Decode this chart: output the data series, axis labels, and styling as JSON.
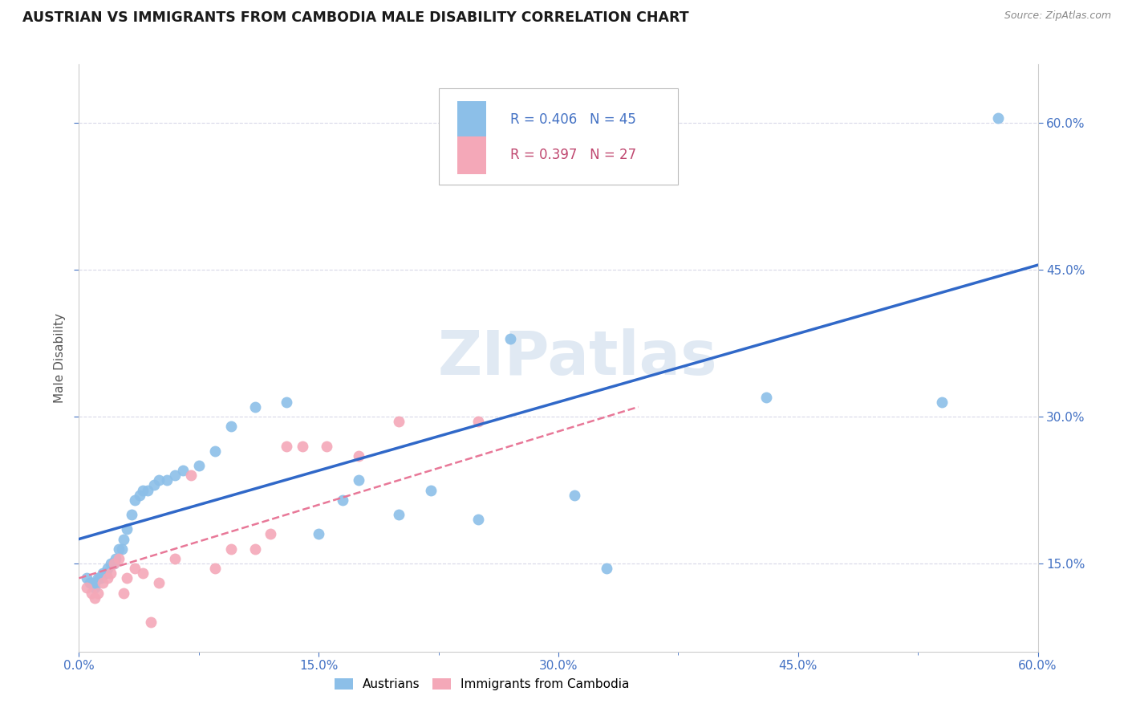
{
  "title": "AUSTRIAN VS IMMIGRANTS FROM CAMBODIA MALE DISABILITY CORRELATION CHART",
  "source": "Source: ZipAtlas.com",
  "ylabel": "Male Disability",
  "xlim": [
    0.0,
    0.6
  ],
  "ylim": [
    0.06,
    0.66
  ],
  "xtick_labels": [
    "0.0%",
    "",
    "15.0%",
    "",
    "30.0%",
    "",
    "45.0%",
    "",
    "60.0%"
  ],
  "xtick_vals": [
    0.0,
    0.075,
    0.15,
    0.225,
    0.3,
    0.375,
    0.45,
    0.525,
    0.6
  ],
  "ytick_labels": [
    "15.0%",
    "30.0%",
    "45.0%",
    "60.0%"
  ],
  "ytick_vals": [
    0.15,
    0.3,
    0.45,
    0.6
  ],
  "austrians_x": [
    0.005,
    0.007,
    0.008,
    0.01,
    0.01,
    0.012,
    0.013,
    0.014,
    0.015,
    0.017,
    0.018,
    0.02,
    0.022,
    0.023,
    0.025,
    0.027,
    0.028,
    0.03,
    0.033,
    0.035,
    0.038,
    0.04,
    0.043,
    0.047,
    0.05,
    0.055,
    0.06,
    0.065,
    0.075,
    0.085,
    0.095,
    0.11,
    0.13,
    0.15,
    0.165,
    0.175,
    0.2,
    0.22,
    0.25,
    0.27,
    0.31,
    0.33,
    0.43,
    0.54,
    0.575
  ],
  "austrians_y": [
    0.135,
    0.13,
    0.13,
    0.125,
    0.13,
    0.135,
    0.135,
    0.135,
    0.14,
    0.14,
    0.145,
    0.15,
    0.15,
    0.155,
    0.165,
    0.165,
    0.175,
    0.185,
    0.2,
    0.215,
    0.22,
    0.225,
    0.225,
    0.23,
    0.235,
    0.235,
    0.24,
    0.245,
    0.25,
    0.265,
    0.29,
    0.31,
    0.315,
    0.18,
    0.215,
    0.235,
    0.2,
    0.225,
    0.195,
    0.38,
    0.22,
    0.145,
    0.32,
    0.315,
    0.605
  ],
  "cambodia_x": [
    0.005,
    0.008,
    0.01,
    0.012,
    0.015,
    0.018,
    0.02,
    0.022,
    0.025,
    0.028,
    0.03,
    0.035,
    0.04,
    0.045,
    0.05,
    0.06,
    0.07,
    0.085,
    0.095,
    0.11,
    0.12,
    0.13,
    0.14,
    0.155,
    0.175,
    0.2,
    0.25
  ],
  "cambodia_y": [
    0.125,
    0.12,
    0.115,
    0.12,
    0.13,
    0.135,
    0.14,
    0.15,
    0.155,
    0.12,
    0.135,
    0.145,
    0.14,
    0.09,
    0.13,
    0.155,
    0.24,
    0.145,
    0.165,
    0.165,
    0.18,
    0.27,
    0.27,
    0.27,
    0.26,
    0.295,
    0.295
  ],
  "blue_r": 0.406,
  "blue_n": 45,
  "pink_r": 0.397,
  "pink_n": 27,
  "blue_color": "#8cbfe8",
  "pink_color": "#f4a8b8",
  "blue_line_color": "#3068c8",
  "pink_line_color": "#e87898",
  "blue_line_start_y": 0.175,
  "blue_line_end_y": 0.455,
  "pink_line_start_y": 0.135,
  "pink_line_end_y": 0.31,
  "pink_line_end_x": 0.35,
  "watermark": "ZIPatlas",
  "background_color": "#ffffff",
  "grid_color": "#d8d8e8"
}
